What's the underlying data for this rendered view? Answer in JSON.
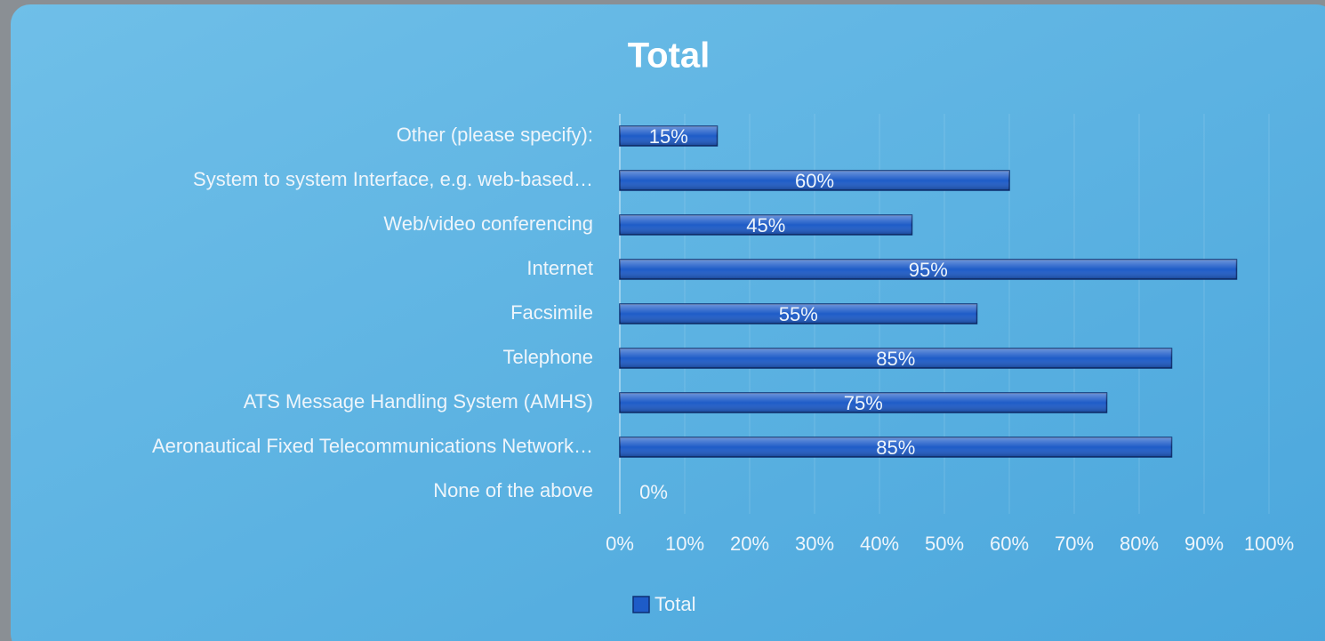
{
  "chart_data": {
    "type": "bar",
    "orientation": "horizontal",
    "title": "Total",
    "categories": [
      "Other (please specify):",
      "System to system Interface, e.g. web-based…",
      "Web/video conferencing",
      "Internet",
      "Facsimile",
      "Telephone",
      "ATS Message Handling System (AMHS)",
      "Aeronautical Fixed Telecommunications Network…",
      "None of the above"
    ],
    "series": [
      {
        "name": "Total",
        "color": "#1e5cc8",
        "values": [
          15,
          60,
          45,
          95,
          55,
          85,
          75,
          85,
          0
        ],
        "value_labels": [
          "15%",
          "60%",
          "45%",
          "95%",
          "55%",
          "85%",
          "75%",
          "85%",
          "0%"
        ]
      }
    ],
    "xlim": [
      0,
      100
    ],
    "xticks": [
      {
        "value": 0,
        "label": "0%"
      },
      {
        "value": 10,
        "label": "10%"
      },
      {
        "value": 20,
        "label": "20%"
      },
      {
        "value": 30,
        "label": "30%"
      },
      {
        "value": 40,
        "label": "40%"
      },
      {
        "value": 50,
        "label": "50%"
      },
      {
        "value": 60,
        "label": "60%"
      },
      {
        "value": 70,
        "label": "70%"
      },
      {
        "value": 80,
        "label": "80%"
      },
      {
        "value": 90,
        "label": "90%"
      },
      {
        "value": 100,
        "label": "100%"
      }
    ],
    "grid": true,
    "legend": "bottom"
  }
}
